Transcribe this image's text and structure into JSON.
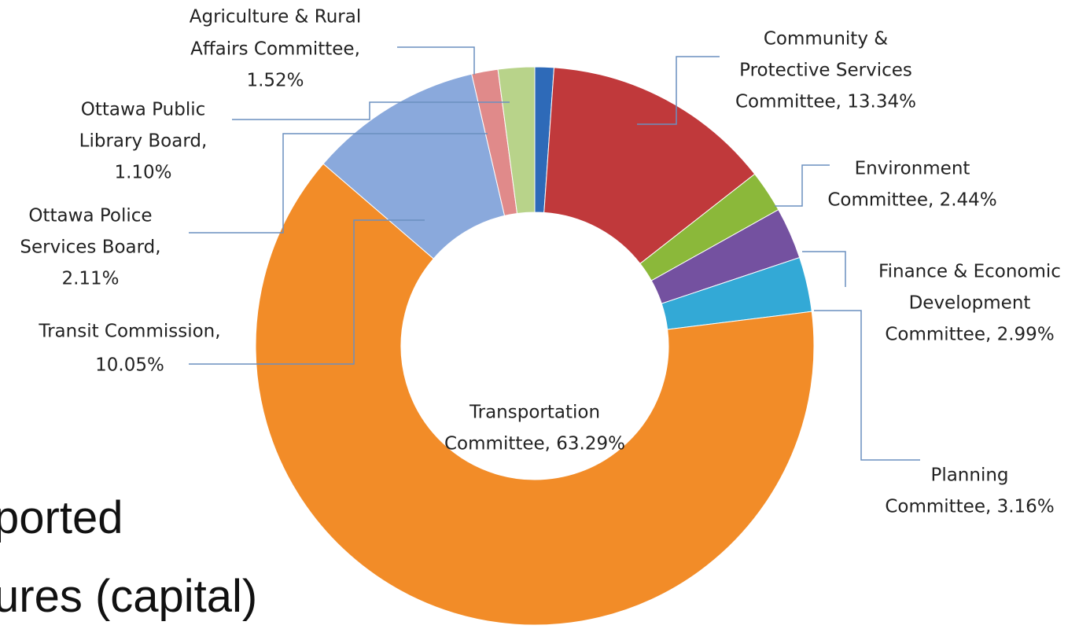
{
  "chart_data": {
    "type": "donut",
    "background_text": [
      "ported",
      "ures (capital)"
    ],
    "slices": [
      {
        "label": [
          "Ottawa Public",
          "Library Board,",
          "1.10%"
        ],
        "value": 1.1,
        "color": "#2e6ab8"
      },
      {
        "label": [
          "Community &",
          "Protective Services",
          "Committee, 13.34%"
        ],
        "value": 13.34,
        "color": "#c0393b"
      },
      {
        "label": [
          "Environment",
          "Committee, 2.44%"
        ],
        "value": 2.44,
        "color": "#8bb83a"
      },
      {
        "label": [
          "Finance & Economic",
          "Development",
          "Committee, 2.99%"
        ],
        "value": 2.99,
        "color": "#7451a0"
      },
      {
        "label": [
          "Planning",
          "Committee, 3.16%"
        ],
        "value": 3.16,
        "color": "#33a9d6"
      },
      {
        "label": [
          "Transportation",
          "Committee, 63.29%"
        ],
        "value": 63.29,
        "color": "#f28c28"
      },
      {
        "label": [
          "Transit Commission,",
          "10.05%"
        ],
        "value": 10.05,
        "color": "#8aa9dc"
      },
      {
        "label": [
          "Agriculture & Rural",
          "Affairs Committee,",
          "1.52%"
        ],
        "value": 1.52,
        "color": "#e08a8a"
      },
      {
        "label": [
          "Ottawa Police",
          "Services Board,",
          "2.11%"
        ],
        "value": 2.11,
        "color": "#b8d38a"
      }
    ]
  }
}
